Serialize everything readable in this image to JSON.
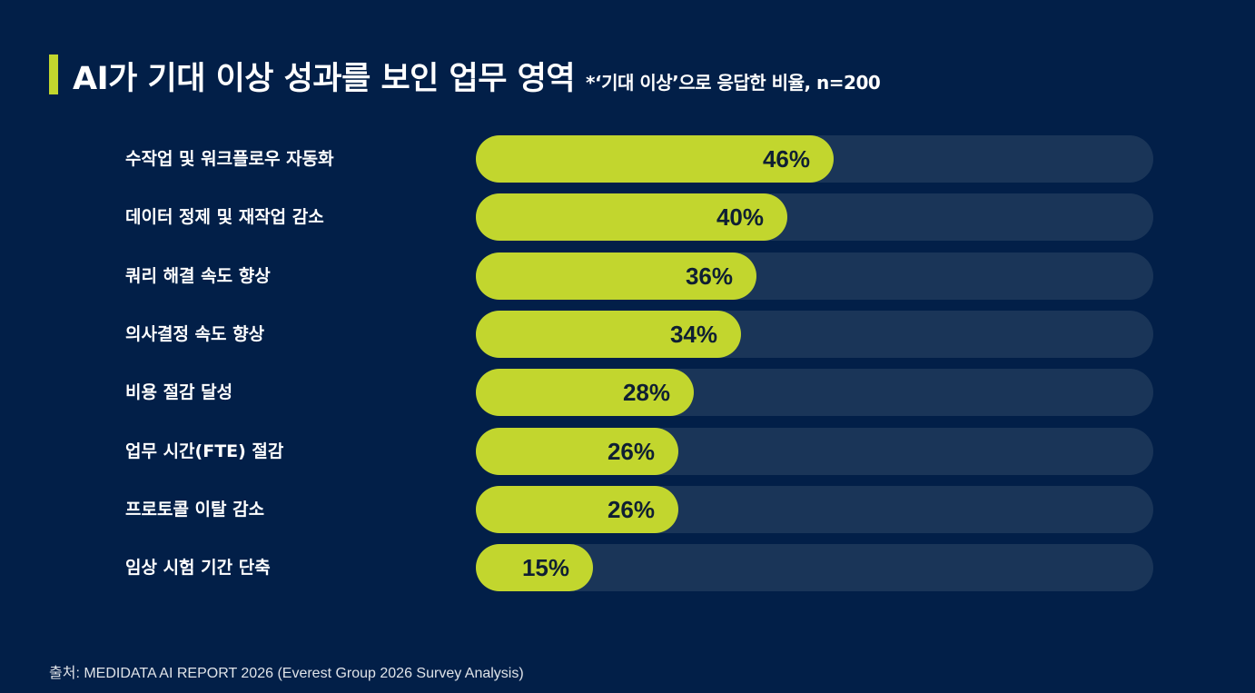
{
  "header": {
    "title": "AI가 기대 이상 성과를 보인 업무 영역",
    "note": "*‘기대 이상’으로 응답한 비율, n=200"
  },
  "chart_data": {
    "type": "bar",
    "orientation": "horizontal",
    "unit": "%",
    "categories": [
      "수작업 및 워크플로우 자동화",
      "데이터 정제 및 재작업 감소",
      "쿼리 해결 속도 향상",
      "의사결정 속도 향상",
      "비용 절감 달성",
      "업무 시간(FTE) 절감",
      "프로토콜 이탈 감소",
      "임상 시험 기간 단축"
    ],
    "values": [
      46,
      40,
      36,
      34,
      28,
      26,
      26,
      15
    ],
    "data_labels": [
      "46%",
      "40%",
      "36%",
      "34%",
      "28%",
      "26%",
      "26%",
      "15%"
    ],
    "xlim": [
      0,
      87
    ],
    "grid": false,
    "colors": {
      "bar": "#c2d62e",
      "track": "#1a3558",
      "background": "#021f48",
      "label_text": "#0f1f33"
    }
  },
  "footer": {
    "source": "출처: MEDIDATA AI REPORT 2026 (Everest Group 2026 Survey Analysis)"
  }
}
